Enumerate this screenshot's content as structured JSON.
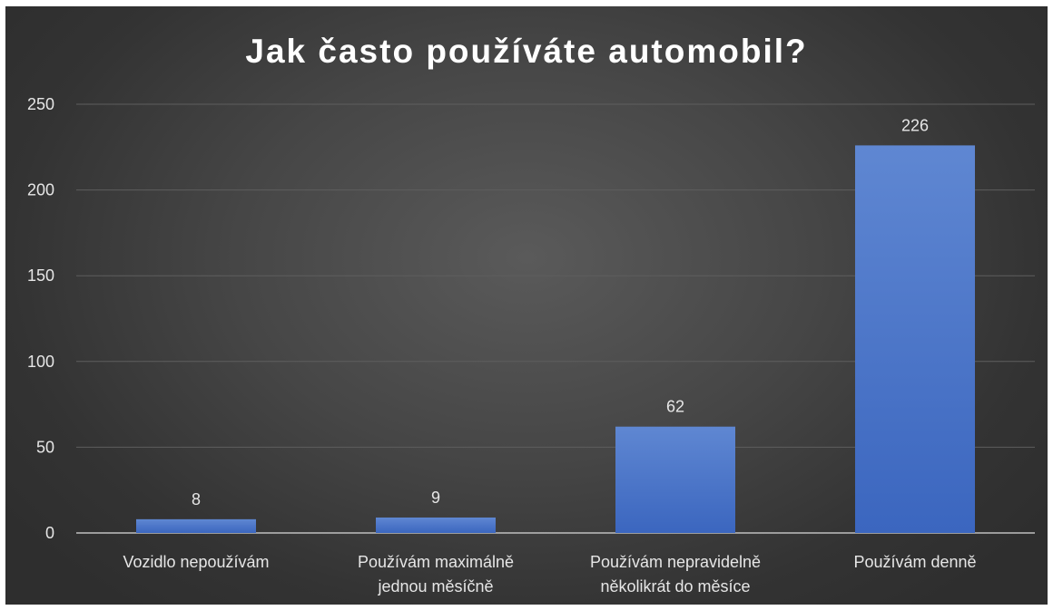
{
  "chart_data": {
    "type": "bar",
    "title": "Jak často používáte automobil?",
    "categories": [
      [
        "Vozidlo nepoužívám"
      ],
      [
        "Používám maximálně",
        "jednou měsíčně"
      ],
      [
        "Používám nepravidelně",
        "několikrát do měsíce"
      ],
      [
        "Používám denně"
      ]
    ],
    "values": [
      8,
      9,
      62,
      226
    ],
    "ylim": [
      0,
      250
    ],
    "yticks": [
      0,
      50,
      100,
      150,
      200,
      250
    ],
    "grid": true,
    "data_labels": true,
    "colors": {
      "bar": "#4472c4",
      "bar_light": "#5f87d2",
      "grid": "#5e5e5e",
      "axis": "#bfbfbf"
    }
  }
}
